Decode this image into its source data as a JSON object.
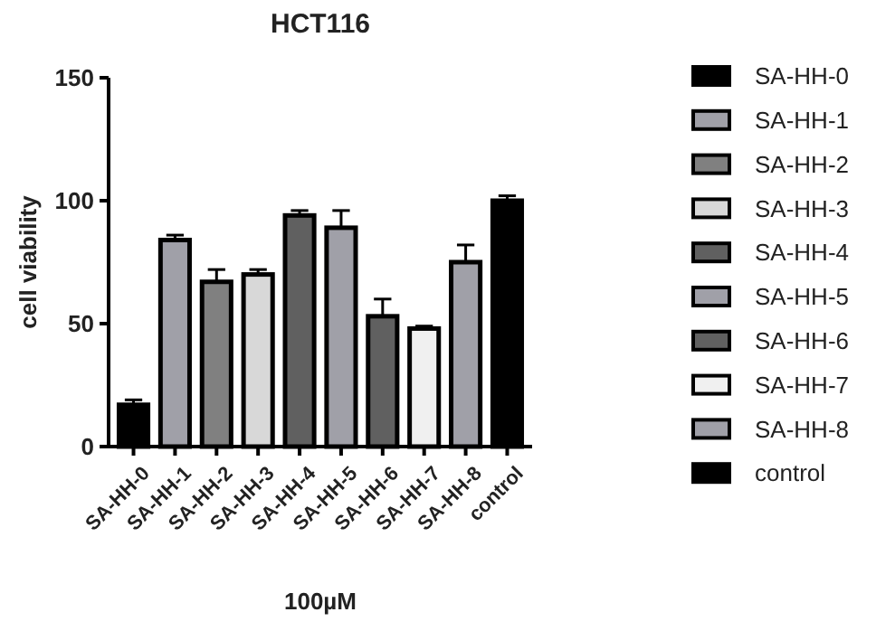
{
  "chart_data": {
    "type": "bar",
    "title": "HCT116",
    "xlabel": "100µM",
    "ylabel": "cell viability",
    "categories": [
      "SA-HH-0",
      "SA-HH-1",
      "SA-HH-2",
      "SA-HH-3",
      "SA-HH-4",
      "SA-HH-5",
      "SA-HH-6",
      "SA-HH-7",
      "SA-HH-8",
      "control"
    ],
    "series": [
      {
        "name": "SA-HH-0",
        "color": "#000000",
        "values": [
          17,
          null,
          null,
          null,
          null,
          null,
          null,
          null,
          null,
          null
        ],
        "errors": [
          2,
          null,
          null,
          null,
          null,
          null,
          null,
          null,
          null,
          null
        ]
      },
      {
        "name": "SA-HH-1",
        "color": "#a0a0a8",
        "values": [
          null,
          84,
          null,
          null,
          null,
          null,
          null,
          null,
          null,
          null
        ],
        "errors": [
          null,
          2,
          null,
          null,
          null,
          null,
          null,
          null,
          null,
          null
        ]
      },
      {
        "name": "SA-HH-2",
        "color": "#808080",
        "values": [
          null,
          null,
          67,
          null,
          null,
          null,
          null,
          null,
          null,
          null
        ],
        "errors": [
          null,
          null,
          5,
          null,
          null,
          null,
          null,
          null,
          null,
          null
        ]
      },
      {
        "name": "SA-HH-3",
        "color": "#d8d8d8",
        "values": [
          null,
          null,
          null,
          70,
          null,
          null,
          null,
          null,
          null,
          null
        ],
        "errors": [
          null,
          null,
          null,
          2,
          null,
          null,
          null,
          null,
          null,
          null
        ]
      },
      {
        "name": "SA-HH-4",
        "color": "#606060",
        "values": [
          null,
          null,
          null,
          null,
          94,
          null,
          null,
          null,
          null,
          null
        ],
        "errors": [
          null,
          null,
          null,
          null,
          2,
          null,
          null,
          null,
          null,
          null
        ]
      },
      {
        "name": "SA-HH-5",
        "color": "#a0a0a8",
        "values": [
          null,
          null,
          null,
          null,
          null,
          89,
          null,
          null,
          null,
          null
        ],
        "errors": [
          null,
          null,
          null,
          null,
          null,
          7,
          null,
          null,
          null,
          null
        ]
      },
      {
        "name": "SA-HH-6",
        "color": "#606060",
        "values": [
          null,
          null,
          null,
          null,
          null,
          null,
          53,
          null,
          null,
          null
        ],
        "errors": [
          null,
          null,
          null,
          null,
          null,
          null,
          7,
          null,
          null,
          null
        ]
      },
      {
        "name": "SA-HH-7",
        "color": "#f0f0f0",
        "values": [
          null,
          null,
          null,
          null,
          null,
          null,
          null,
          48,
          null,
          null
        ],
        "errors": [
          null,
          null,
          null,
          null,
          null,
          null,
          null,
          1,
          null,
          null
        ]
      },
      {
        "name": "SA-HH-8",
        "color": "#a0a0a8",
        "values": [
          null,
          null,
          null,
          null,
          null,
          null,
          null,
          null,
          75,
          null
        ],
        "errors": [
          null,
          null,
          null,
          null,
          null,
          null,
          null,
          null,
          7,
          null
        ]
      },
      {
        "name": "control",
        "color": "#000000",
        "values": [
          null,
          null,
          null,
          null,
          null,
          null,
          null,
          null,
          null,
          100
        ],
        "errors": [
          null,
          null,
          null,
          null,
          null,
          null,
          null,
          null,
          null,
          2
        ]
      }
    ],
    "ylim": [
      0,
      150
    ],
    "yticks": [
      0,
      50,
      100,
      150
    ],
    "legend": "right"
  }
}
